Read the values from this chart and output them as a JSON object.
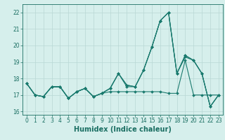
{
  "xlabel": "Humidex (Indice chaleur)",
  "x": [
    0,
    1,
    2,
    3,
    4,
    5,
    6,
    7,
    8,
    9,
    10,
    11,
    12,
    13,
    14,
    15,
    16,
    17,
    18,
    19,
    20,
    21,
    22,
    23
  ],
  "series": [
    [
      17.7,
      17.0,
      16.9,
      17.5,
      17.5,
      16.8,
      17.2,
      17.4,
      16.9,
      17.1,
      17.4,
      18.3,
      17.6,
      17.5,
      18.5,
      19.9,
      21.5,
      22.0,
      18.3,
      19.4,
      19.1,
      18.3,
      16.3,
      17.0
    ],
    [
      17.7,
      17.0,
      16.9,
      17.5,
      17.5,
      16.8,
      17.2,
      17.4,
      16.9,
      17.1,
      17.4,
      18.3,
      17.6,
      17.5,
      18.5,
      19.9,
      21.5,
      22.0,
      18.3,
      19.4,
      19.1,
      18.3,
      16.3,
      17.0
    ],
    [
      17.7,
      17.0,
      16.9,
      17.5,
      17.5,
      16.8,
      17.2,
      17.4,
      16.9,
      17.1,
      17.4,
      18.3,
      17.5,
      17.5,
      18.5,
      19.9,
      21.5,
      22.0,
      18.3,
      19.3,
      19.1,
      18.3,
      16.3,
      17.0
    ],
    [
      17.7,
      17.0,
      16.9,
      17.5,
      17.5,
      16.8,
      17.2,
      17.4,
      16.9,
      17.1,
      17.2,
      17.2,
      17.2,
      17.2,
      17.2,
      17.2,
      17.2,
      17.1,
      17.1,
      19.1,
      17.0,
      17.0,
      17.0,
      17.0
    ]
  ],
  "line_color": "#1a7a6e",
  "marker": "D",
  "markersize": 2.0,
  "linewidth": 0.8,
  "ylim": [
    15.8,
    22.5
  ],
  "yticks": [
    16,
    17,
    18,
    19,
    20,
    21,
    22
  ],
  "xlim": [
    -0.5,
    23.5
  ],
  "xtick_labels": [
    "0",
    "1",
    "2",
    "3",
    "4",
    "5",
    "6",
    "7",
    "8",
    "9",
    "10",
    "11",
    "12",
    "13",
    "14",
    "15",
    "16",
    "17",
    "18",
    "19",
    "20",
    "21",
    "22",
    "23"
  ],
  "bg_color": "#d6efec",
  "grid_color": "#b8d8d4",
  "font_color": "#1a6e62",
  "tick_fontsize": 5.5,
  "label_fontsize": 7.0
}
